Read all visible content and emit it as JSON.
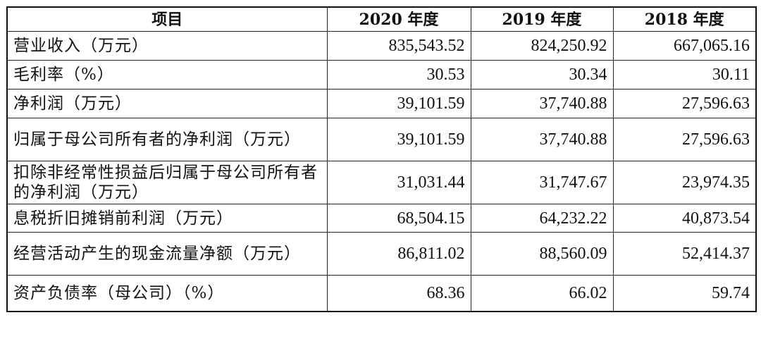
{
  "table": {
    "headers": [
      "项目",
      "2020 年度",
      "2019 年度",
      "2018 年度"
    ],
    "rows": [
      {
        "item": "营业收入（万元）",
        "v2020": "835,543.52",
        "v2019": "824,250.92",
        "v2018": "667,065.16"
      },
      {
        "item": "毛利率（%）",
        "v2020": "30.53",
        "v2019": "30.34",
        "v2018": "30.11"
      },
      {
        "item": "净利润（万元）",
        "v2020": "39,101.59",
        "v2019": "37,740.88",
        "v2018": "27,596.63"
      },
      {
        "item": "归属于母公司所有者的净利润（万元）",
        "v2020": "39,101.59",
        "v2019": "37,740.88",
        "v2018": "27,596.63"
      },
      {
        "item": "扣除非经常性损益后归属于母公司所有者的净利润（万元）",
        "v2020": "31,031.44",
        "v2019": "31,747.67",
        "v2018": "23,974.35"
      },
      {
        "item": "息税折旧摊销前利润（万元）",
        "v2020": "68,504.15",
        "v2019": "64,232.22",
        "v2018": "40,873.54"
      },
      {
        "item": "经营活动产生的现金流量净额（万元）",
        "v2020": "86,811.02",
        "v2019": "88,560.09",
        "v2018": "52,414.37"
      },
      {
        "item": "资产负债率（母公司）（%）",
        "v2020": "68.36",
        "v2019": "66.02",
        "v2018": "59.74"
      }
    ]
  }
}
